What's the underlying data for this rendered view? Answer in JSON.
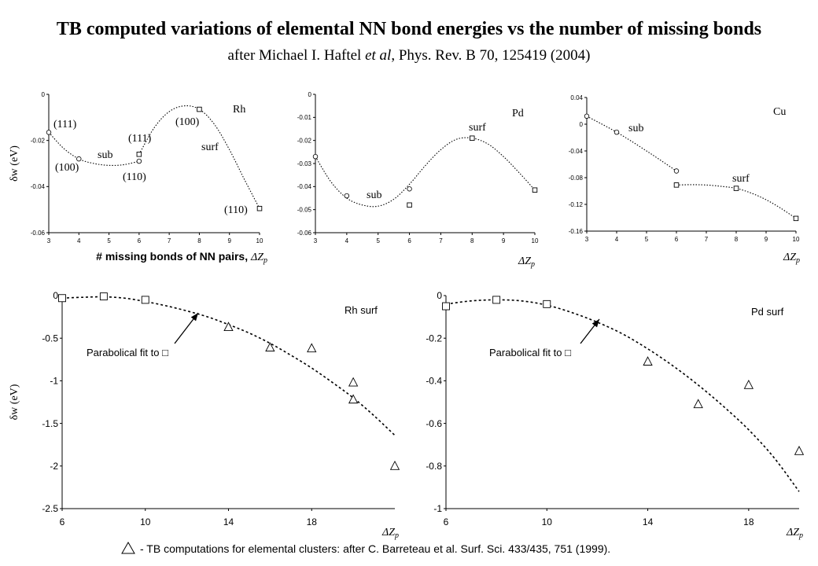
{
  "title": "TB computed variations of elemental NN bond energies vs the number of missing bonds",
  "subtitle": {
    "pre": "after Michael I. Haftel ",
    "italic": "et al",
    "post": ", Phys. Rev. B 70, 125419 (2004)"
  },
  "footnote": "- TB computations for elemental clusters: after C. Barreteau et al. Surf. Sci. 433/435, 751 (1999).",
  "chart_data": [
    {
      "type": "scatter",
      "name": "Rh",
      "xlim": [
        3,
        10
      ],
      "ylim": [
        -0.06,
        0
      ],
      "xticks": [
        "3",
        "4",
        "5",
        "6",
        "7",
        "8",
        "9",
        "10"
      ],
      "yticks": [
        "0",
        "-0.02",
        "-0.04",
        "-0.06"
      ],
      "ylabel": "δw (eV)",
      "xlabel": "# missing bonds of NN pairs, ΔZ",
      "xlabel_sub": "p",
      "series": [
        {
          "marker": "circle",
          "x": [
            3,
            4,
            6
          ],
          "y": [
            -0.0165,
            -0.028,
            -0.029
          ]
        },
        {
          "marker": "square",
          "x": [
            6,
            8,
            10
          ],
          "y": [
            -0.026,
            -0.0065,
            -0.0495
          ]
        }
      ],
      "curves": [
        {
          "x": [
            3,
            3.5,
            4,
            4.5,
            5,
            5.5,
            6
          ],
          "y": [
            -0.0165,
            -0.0235,
            -0.028,
            -0.03,
            -0.0308,
            -0.0305,
            -0.029
          ]
        },
        {
          "x": [
            6,
            6.5,
            7,
            7.5,
            8,
            8.5,
            9,
            9.5,
            10
          ],
          "y": [
            -0.026,
            -0.0145,
            -0.0075,
            -0.005,
            -0.0065,
            -0.013,
            -0.024,
            -0.037,
            -0.0495
          ]
        }
      ],
      "annotations": [
        "(111)",
        "(100)",
        "sub",
        "(111)",
        "(110)",
        "(100)",
        "surf",
        "(110)",
        "Rh"
      ]
    },
    {
      "type": "scatter",
      "name": "Pd",
      "xlim": [
        3,
        10
      ],
      "ylim": [
        -0.06,
        0
      ],
      "xticks": [
        "3",
        "4",
        "5",
        "6",
        "7",
        "8",
        "9",
        "10"
      ],
      "yticks": [
        "0",
        "-0.01",
        "-0.02",
        "-0.03",
        "-0.04",
        "-0.05",
        "-0.06"
      ],
      "xlabel": "ΔZ",
      "xlabel_sub": "p",
      "series": [
        {
          "marker": "circle",
          "x": [
            3,
            4,
            6
          ],
          "y": [
            -0.027,
            -0.044,
            -0.041
          ]
        },
        {
          "marker": "square",
          "x": [
            6,
            8,
            10
          ],
          "y": [
            -0.048,
            -0.019,
            -0.0415
          ]
        }
      ],
      "curves": [
        {
          "x": [
            3,
            3.5,
            4,
            4.5,
            5,
            5.5,
            6,
            6.5,
            7,
            7.5,
            8,
            8.5,
            9,
            9.5,
            10
          ],
          "y": [
            -0.027,
            -0.038,
            -0.045,
            -0.048,
            -0.0485,
            -0.0455,
            -0.039,
            -0.031,
            -0.024,
            -0.0195,
            -0.019,
            -0.0215,
            -0.027,
            -0.034,
            -0.0415
          ]
        }
      ],
      "annotations": [
        "sub",
        "surf",
        "Pd"
      ]
    },
    {
      "type": "scatter",
      "name": "Cu",
      "xlim": [
        3,
        10
      ],
      "ylim": [
        -0.16,
        0.04
      ],
      "xticks": [
        "3",
        "4",
        "5",
        "6",
        "7",
        "8",
        "9",
        "10"
      ],
      "yticks": [
        "0.04",
        "0",
        "-0.04",
        "-0.08",
        "-0.12",
        "-0.16"
      ],
      "xlabel": "ΔZ",
      "xlabel_sub": "p",
      "series": [
        {
          "marker": "circle",
          "x": [
            3,
            4,
            6
          ],
          "y": [
            0.012,
            -0.012,
            -0.07
          ]
        },
        {
          "marker": "square",
          "x": [
            6,
            8,
            10
          ],
          "y": [
            -0.091,
            -0.096,
            -0.141
          ]
        }
      ],
      "curves": [
        {
          "x": [
            3,
            4,
            5,
            6
          ],
          "y": [
            0.012,
            -0.012,
            -0.04,
            -0.07
          ]
        },
        {
          "x": [
            6,
            6.5,
            7,
            7.5,
            8,
            8.5,
            9,
            9.5,
            10
          ],
          "y": [
            -0.091,
            -0.0905,
            -0.091,
            -0.093,
            -0.096,
            -0.103,
            -0.113,
            -0.126,
            -0.141
          ]
        }
      ],
      "annotations": [
        "sub",
        "surf",
        "Cu"
      ]
    },
    {
      "type": "scatter",
      "name": "Rh surf",
      "xlim": [
        6,
        22
      ],
      "ylim": [
        -2.5,
        0
      ],
      "xticks": [
        "6",
        "10",
        "14",
        "18"
      ],
      "xtick_values": [
        6,
        10,
        14,
        18
      ],
      "yticks": [
        "0",
        "-0.5",
        "-1",
        "-1.5",
        "-2",
        "-2.5"
      ],
      "ylabel": "δw (eV)",
      "xlabel": "ΔZ",
      "xlabel_sub": "p",
      "series": [
        {
          "marker": "square",
          "x": [
            6,
            8,
            10
          ],
          "y": [
            -0.03,
            -0.01,
            -0.05
          ]
        },
        {
          "marker": "triangle",
          "x": [
            14,
            16,
            18,
            20,
            20,
            22
          ],
          "y": [
            -0.37,
            -0.61,
            -0.62,
            -1.02,
            -1.22,
            -2.0
          ]
        }
      ],
      "curves": [
        {
          "x": [
            6,
            7,
            8,
            9,
            10,
            11,
            12,
            13,
            14,
            15,
            16,
            17,
            18,
            19,
            20,
            21,
            22
          ],
          "y": [
            -0.03,
            -0.02,
            -0.015,
            -0.03,
            -0.07,
            -0.12,
            -0.18,
            -0.25,
            -0.34,
            -0.44,
            -0.56,
            -0.7,
            -0.85,
            -1.02,
            -1.2,
            -1.41,
            -1.64
          ]
        }
      ],
      "annotations": [
        "Parabolical fit to □",
        "Rh surf"
      ]
    },
    {
      "type": "scatter",
      "name": "Pd surf",
      "xlim": [
        6,
        20
      ],
      "ylim": [
        -1,
        0
      ],
      "xticks": [
        "6",
        "10",
        "14",
        "18"
      ],
      "xtick_values": [
        6,
        10,
        14,
        18
      ],
      "yticks": [
        "0",
        "-0.2",
        "-0.4",
        "-0.6",
        "-0.8",
        "-1"
      ],
      "xlabel": "ΔZ",
      "xlabel_sub": "p",
      "series": [
        {
          "marker": "square",
          "x": [
            6,
            8,
            10
          ],
          "y": [
            -0.05,
            -0.02,
            -0.04
          ]
        },
        {
          "marker": "triangle",
          "x": [
            14,
            16,
            18,
            20
          ],
          "y": [
            -0.31,
            -0.51,
            -0.42,
            -0.73
          ]
        }
      ],
      "curves": [
        {
          "x": [
            6,
            7,
            8,
            9,
            10,
            11,
            12,
            13,
            14,
            15,
            16,
            17,
            18,
            19,
            20
          ],
          "y": [
            -0.04,
            -0.025,
            -0.02,
            -0.025,
            -0.045,
            -0.08,
            -0.125,
            -0.18,
            -0.25,
            -0.33,
            -0.42,
            -0.52,
            -0.63,
            -0.76,
            -0.92
          ]
        }
      ],
      "annotations": [
        "Parabolical fit to □",
        "Pd surf"
      ]
    }
  ]
}
